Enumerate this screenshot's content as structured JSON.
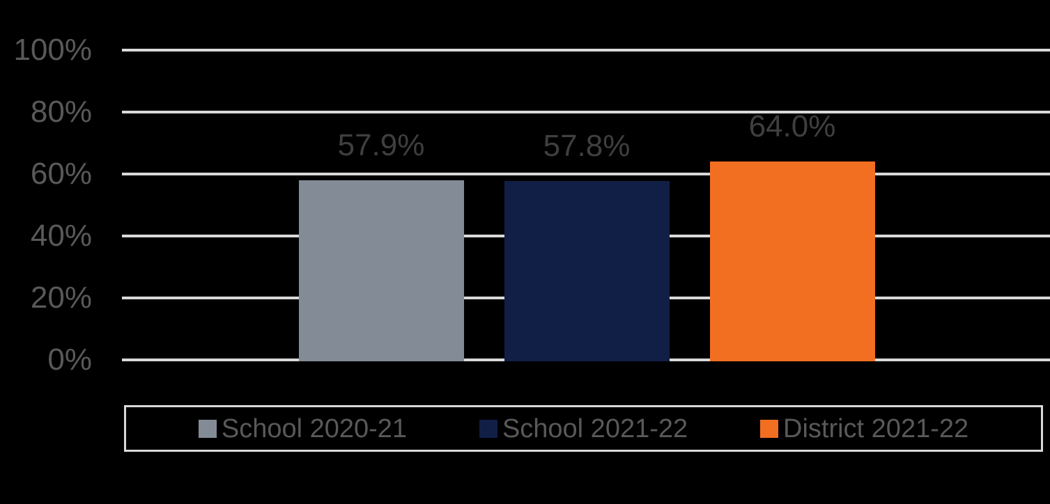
{
  "chart_data": {
    "type": "bar",
    "title": "",
    "xlabel": "",
    "ylabel": "",
    "categories": [
      "School 2020-21",
      "School 2021-22",
      "District 2021-22"
    ],
    "values": [
      57.9,
      57.8,
      64.0
    ],
    "data_labels": [
      "57.9%",
      "57.8%",
      "64.0%"
    ],
    "bar_colors": [
      "#838C96",
      "#111F47",
      "#F26F21"
    ],
    "ylim": [
      0,
      100
    ],
    "y_ticks": [
      {
        "value": 100,
        "label": "100%"
      },
      {
        "value": 80,
        "label": "80%"
      },
      {
        "value": 60,
        "label": "60%"
      },
      {
        "value": 40,
        "label": "40%"
      },
      {
        "value": 20,
        "label": "20%"
      },
      {
        "value": 0,
        "label": "0%"
      }
    ],
    "grid": true,
    "legend": {
      "position": "bottom",
      "items": [
        "School 2020-21",
        "School 2021-22",
        "District 2021-22"
      ]
    }
  },
  "styles": {
    "background_color": "#000000",
    "gridline_color": "#D9D9D9",
    "axis_label_color": "#595959",
    "data_label_color": "#3F3F3F",
    "legend_text_color": "#595959",
    "legend_border_color": "#D9D9D9"
  }
}
